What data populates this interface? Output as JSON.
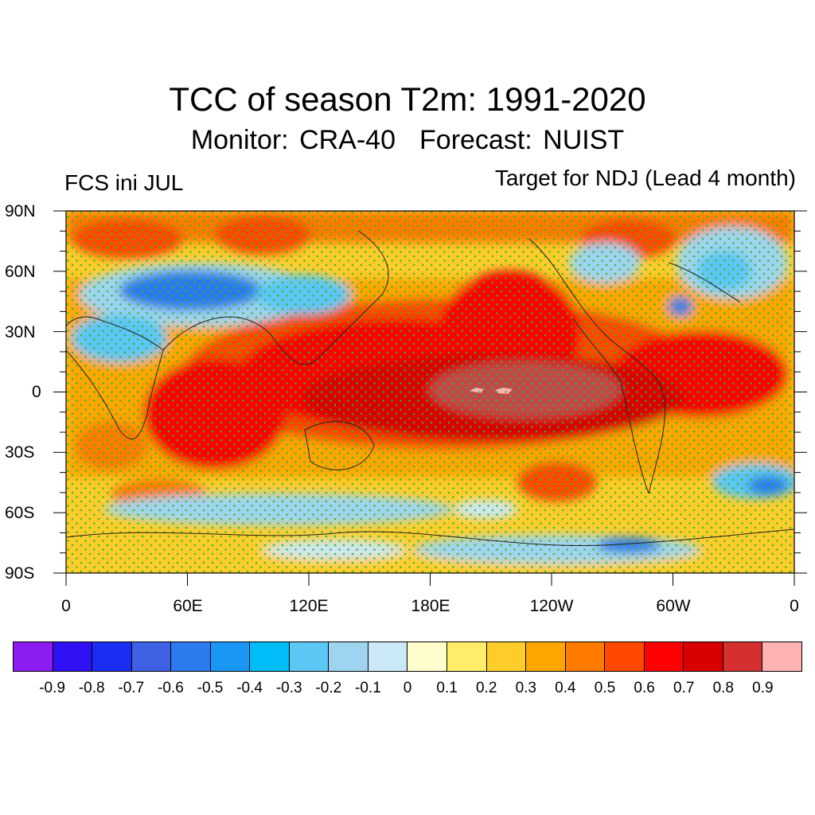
{
  "title": "TCC of season T2m: 1991-2020",
  "subtitle": {
    "monitor": "Monitor: CRA-40",
    "forecast": "Forecast: NUIST"
  },
  "left_label": "FCS ini JUL",
  "right_label": "Target for NDJ (Lead 4 month)",
  "map": {
    "projection": "cylindrical-equidistant",
    "lon_range": [
      0,
      360
    ],
    "lat_range": [
      -90,
      90
    ],
    "lat_ticks": [
      "90N",
      "60N",
      "30N",
      "0",
      "30S",
      "60S",
      "90S"
    ],
    "lon_ticks": [
      "0",
      "60E",
      "120E",
      "180E",
      "120W",
      "60W",
      "0"
    ],
    "stippling": "significance dots (green)",
    "coastlines": true
  },
  "colorbar": {
    "colors": [
      "#8c1cf2",
      "#3010f5",
      "#1a2df0",
      "#3f62e4",
      "#2b7aee",
      "#1a96f5",
      "#00bcf7",
      "#5cc6f5",
      "#9fd4f0",
      "#cbe8f8",
      "#fffdcc",
      "#ffed6a",
      "#ffcd2a",
      "#ffa600",
      "#ff7b00",
      "#ff4800",
      "#ff0000",
      "#d90000",
      "#d53030",
      "#ffb2b4"
    ],
    "labels": [
      "-0.9",
      "-0.8",
      "-0.7",
      "-0.6",
      "-0.5",
      "-0.4",
      "-0.3",
      "-0.2",
      "-0.1",
      "0",
      "0.1",
      "0.2",
      "0.3",
      "0.4",
      "0.5",
      "0.6",
      "0.7",
      "0.8",
      "0.9"
    ]
  }
}
